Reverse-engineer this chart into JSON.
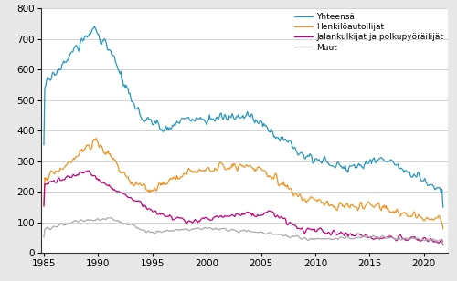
{
  "series": {
    "Yhteensä": {
      "color": "#2596be"
    },
    "Henkilöautoilijat": {
      "color": "#f0921e"
    },
    "Jalankulkijat ja polkupyöräilijät": {
      "color": "#c0007a"
    },
    "Muut": {
      "color": "#aaaaaa"
    }
  },
  "ylim": [
    0,
    800
  ],
  "yticks": [
    0,
    100,
    200,
    300,
    400,
    500,
    600,
    700,
    800
  ],
  "xticks": [
    1985,
    1990,
    1995,
    2000,
    2005,
    2010,
    2015,
    2020
  ],
  "xlim": [
    1984.75,
    2022.2
  ],
  "linewidth": 0.9,
  "figsize": [
    5.0,
    3.08
  ],
  "dpi": 100,
  "bg_color": "#e8e8e8",
  "plot_bg": "#ffffff",
  "grid_color": "#cccccc"
}
